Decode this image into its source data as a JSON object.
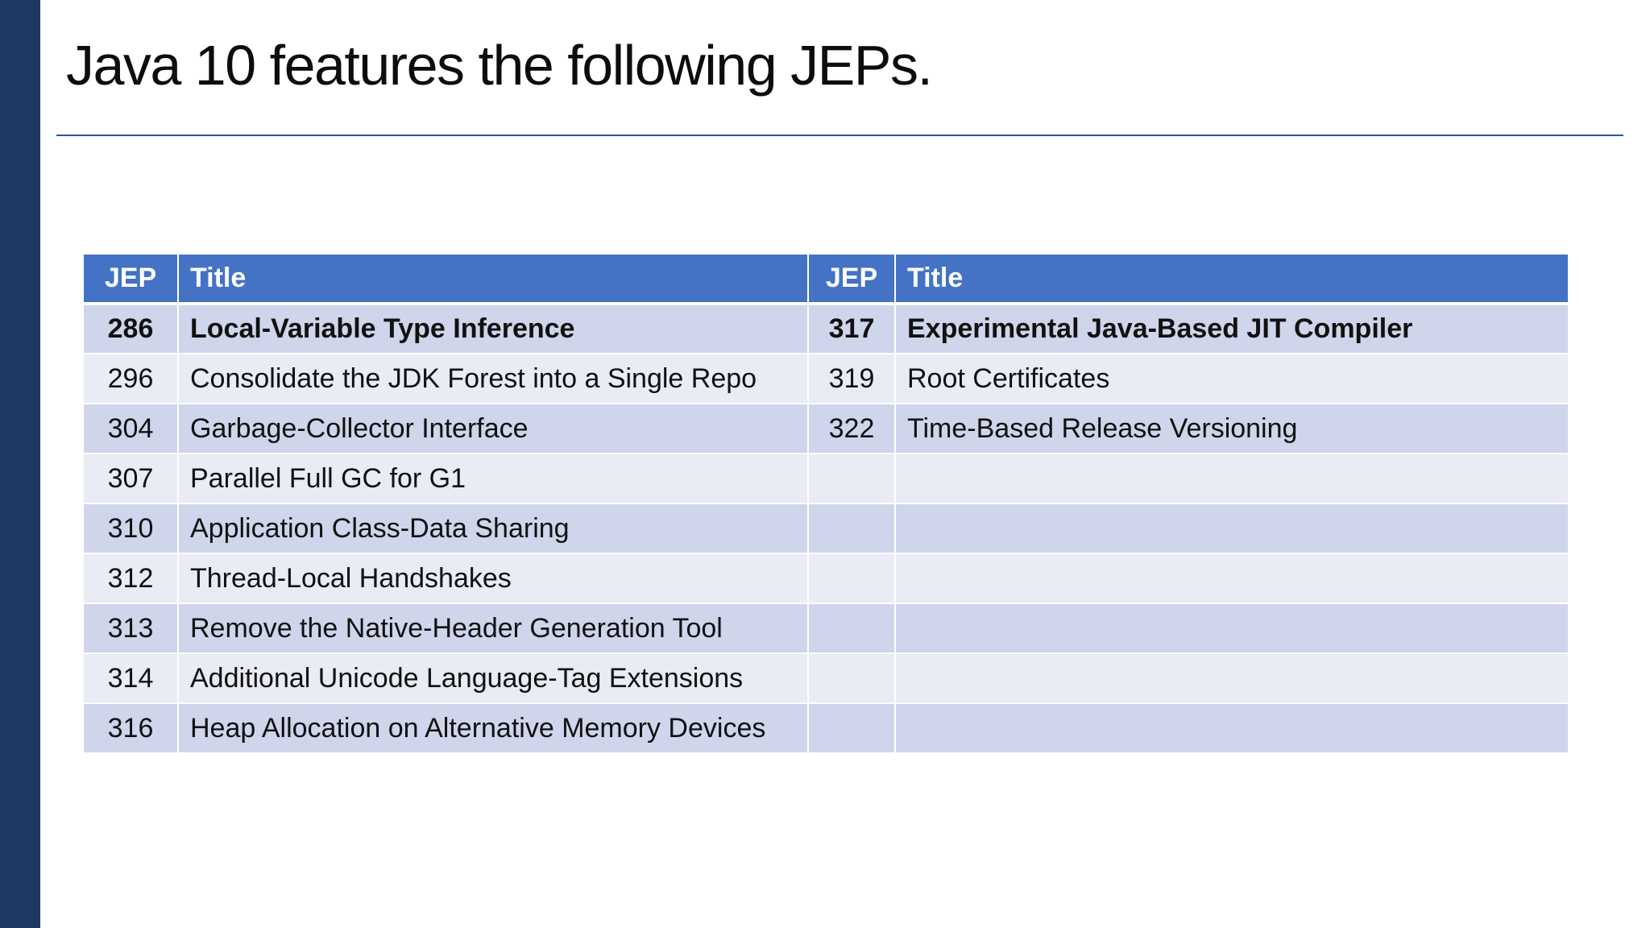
{
  "slide": {
    "title": "Java 10 features the following JEPs."
  },
  "table": {
    "headers": [
      "JEP",
      "Title",
      "JEP",
      "Title"
    ],
    "rows": [
      [
        "286",
        "Local-Variable Type Inference",
        "317",
        "Experimental Java-Based JIT Compiler"
      ],
      [
        "296",
        "Consolidate the JDK Forest into a Single Repo",
        "319",
        "Root Certificates"
      ],
      [
        "304",
        "Garbage-Collector Interface",
        "322",
        "Time-Based Release Versioning"
      ],
      [
        "307",
        "Parallel Full GC for G1",
        "",
        ""
      ],
      [
        "310",
        "Application Class-Data Sharing",
        "",
        ""
      ],
      [
        "312",
        "Thread-Local Handshakes",
        "",
        ""
      ],
      [
        "313",
        "Remove the Native-Header Generation Tool",
        "",
        ""
      ],
      [
        "314",
        "Additional Unicode Language-Tag Extensions",
        "",
        ""
      ],
      [
        "316",
        "Heap Allocation on Alternative Memory Devices",
        "",
        ""
      ]
    ]
  },
  "colors": {
    "left_bar": "#1f3864",
    "title_rule": "#2f5597",
    "header_bg": "#4472c4",
    "row_odd_bg": "#cfd5ea",
    "row_even_bg": "#e9ebf5"
  }
}
